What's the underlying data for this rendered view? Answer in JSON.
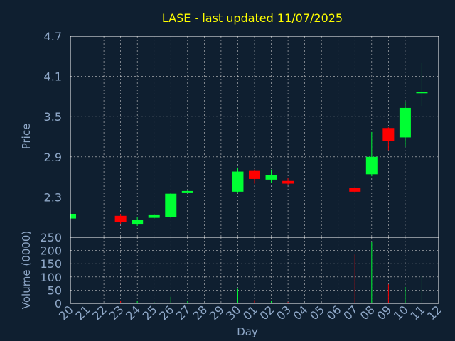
{
  "chart_data": {
    "type": "candlestick",
    "title": "LASE - last updated 11/07/2025",
    "xlabel": "Day",
    "ylabel": "Price",
    "volume_label": "Volume (0000)",
    "x_ticks": [
      "20",
      "21",
      "22",
      "23",
      "24",
      "25",
      "26",
      "27",
      "28",
      "29",
      "30",
      "01",
      "02",
      "03",
      "04",
      "05",
      "06",
      "07",
      "08",
      "09",
      "10",
      "11",
      "12"
    ],
    "price_ticks": [
      "2.3",
      "2.9",
      "3.5",
      "4.1",
      "4.7"
    ],
    "price_ylim": [
      1.7,
      4.7
    ],
    "volume_ticks": [
      "0",
      "50",
      "100",
      "150",
      "200",
      "250"
    ],
    "volume_ylim": [
      0,
      250
    ],
    "grid": true,
    "colors": {
      "background": "#0f1f30",
      "up": "#00ff33",
      "down": "#ff0000",
      "title": "#ffff00",
      "axis_text": "#8fa8c8",
      "grid": "#c8c8c8",
      "frame": "#ffffff"
    },
    "candles": [
      {
        "day": "20",
        "open": 1.98,
        "close": 2.05,
        "high": 2.05,
        "low": 1.98,
        "volume": 0
      },
      {
        "day": "23",
        "open": 2.02,
        "close": 1.93,
        "high": 2.05,
        "low": 1.9,
        "volume": 10
      },
      {
        "day": "24",
        "open": 1.89,
        "close": 1.96,
        "high": 2.0,
        "low": 1.87,
        "volume": 8
      },
      {
        "day": "25",
        "open": 1.99,
        "close": 2.04,
        "high": 2.05,
        "low": 1.98,
        "volume": 5
      },
      {
        "day": "26",
        "open": 2.0,
        "close": 2.35,
        "high": 2.36,
        "low": 1.99,
        "volume": 25
      },
      {
        "day": "27",
        "open": 2.37,
        "close": 2.39,
        "high": 2.41,
        "low": 2.37,
        "volume": 8
      },
      {
        "day": "30",
        "open": 2.38,
        "close": 2.68,
        "high": 2.74,
        "low": 2.37,
        "volume": 55
      },
      {
        "day": "01",
        "open": 2.7,
        "close": 2.57,
        "high": 2.71,
        "low": 2.5,
        "volume": 12
      },
      {
        "day": "02",
        "open": 2.56,
        "close": 2.63,
        "high": 2.71,
        "low": 2.51,
        "volume": 8
      },
      {
        "day": "03",
        "open": 2.54,
        "close": 2.5,
        "high": 2.59,
        "low": 2.48,
        "volume": 5
      },
      {
        "day": "07",
        "open": 2.44,
        "close": 2.38,
        "high": 2.45,
        "low": 2.37,
        "volume": 185
      },
      {
        "day": "08",
        "open": 2.64,
        "close": 2.9,
        "high": 3.27,
        "low": 2.61,
        "volume": 232
      },
      {
        "day": "09",
        "open": 3.33,
        "close": 3.14,
        "high": 3.34,
        "low": 3.0,
        "volume": 72
      },
      {
        "day": "10",
        "open": 3.19,
        "close": 3.63,
        "high": 3.72,
        "low": 3.05,
        "volume": 62
      },
      {
        "day": "11",
        "open": 3.86,
        "close": 3.87,
        "high": 4.3,
        "low": 3.66,
        "volume": 103
      }
    ]
  }
}
